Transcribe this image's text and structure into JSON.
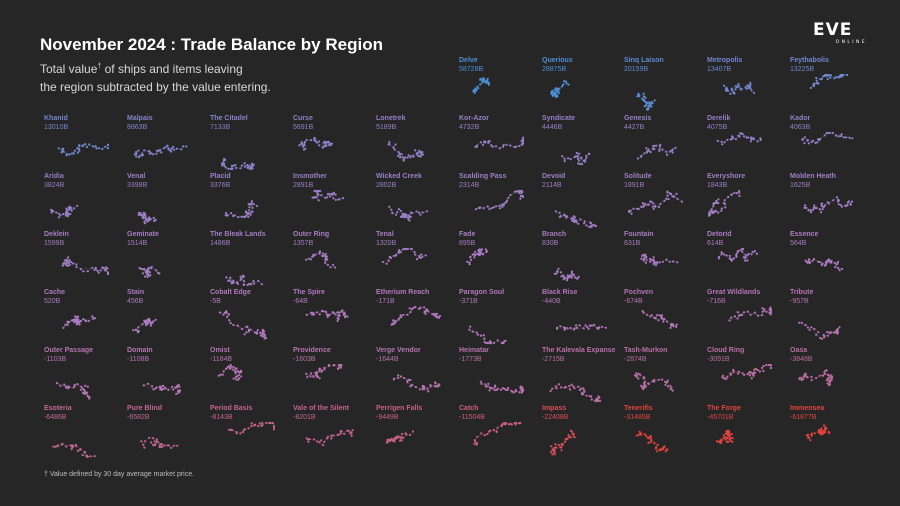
{
  "header": {
    "title": "November 2024 : Trade Balance by Region",
    "subtitle_part1": "Total value",
    "subtitle_sup": "†",
    "subtitle_part2": " of ships and items leaving",
    "subtitle_line2": "the region subtracted by the value entering.",
    "footnote": "† Value defined by 30 day average market price."
  },
  "logo": {
    "word": "EVE",
    "sub": "ONLINE"
  },
  "colors": {
    "background": "#262626",
    "positive": "#4d8fd6",
    "neutral": "#b07ac0",
    "negative": "#e0443e"
  },
  "chart_data": {
    "type": "small-multiples",
    "title": "November 2024 : Trade Balance by Region",
    "unit": "B ISK",
    "regions": [
      {
        "name": "Delve",
        "label": "58728B",
        "value": 58728
      },
      {
        "name": "Querious",
        "label": "28875B",
        "value": 28875
      },
      {
        "name": "Sinq Laison",
        "label": "20159B",
        "value": 20159
      },
      {
        "name": "Metropolis",
        "label": "13407B",
        "value": 13407
      },
      {
        "name": "Feythabolis",
        "label": "13225B",
        "value": 13225
      },
      {
        "name": "Khanid",
        "label": "13010B",
        "value": 13010
      },
      {
        "name": "Malpais",
        "label": "8863B",
        "value": 8863
      },
      {
        "name": "The Citadel",
        "label": "7133B",
        "value": 7133
      },
      {
        "name": "Curse",
        "label": "5691B",
        "value": 5691
      },
      {
        "name": "Lonetrek",
        "label": "5189B",
        "value": 5189
      },
      {
        "name": "Kor-Azor",
        "label": "4732B",
        "value": 4732
      },
      {
        "name": "Syndicate",
        "label": "4446B",
        "value": 4446
      },
      {
        "name": "Genesis",
        "label": "4427B",
        "value": 4427
      },
      {
        "name": "Derelik",
        "label": "4075B",
        "value": 4075
      },
      {
        "name": "Kador",
        "label": "4063B",
        "value": 4063
      },
      {
        "name": "Aridia",
        "label": "3824B",
        "value": 3824
      },
      {
        "name": "Venal",
        "label": "3398B",
        "value": 3398
      },
      {
        "name": "Placid",
        "label": "3376B",
        "value": 3376
      },
      {
        "name": "Insmother",
        "label": "2891B",
        "value": 2891
      },
      {
        "name": "Wicked Creek",
        "label": "2802B",
        "value": 2802
      },
      {
        "name": "Scalding Pass",
        "label": "2314B",
        "value": 2314
      },
      {
        "name": "Devoid",
        "label": "2114B",
        "value": 2114
      },
      {
        "name": "Solitude",
        "label": "1891B",
        "value": 1891
      },
      {
        "name": "Everyshore",
        "label": "1843B",
        "value": 1843
      },
      {
        "name": "Molden Heath",
        "label": "1625B",
        "value": 1625
      },
      {
        "name": "Deklein",
        "label": "1599B",
        "value": 1599
      },
      {
        "name": "Geminate",
        "label": "1514B",
        "value": 1514
      },
      {
        "name": "The Bleak Lands",
        "label": "1486B",
        "value": 1486
      },
      {
        "name": "Outer Ring",
        "label": "1357B",
        "value": 1357
      },
      {
        "name": "Tenal",
        "label": "1320B",
        "value": 1320
      },
      {
        "name": "Fade",
        "label": "895B",
        "value": 895
      },
      {
        "name": "Branch",
        "label": "830B",
        "value": 830
      },
      {
        "name": "Fountain",
        "label": "631B",
        "value": 631
      },
      {
        "name": "Detorid",
        "label": "614B",
        "value": 614
      },
      {
        "name": "Essence",
        "label": "564B",
        "value": 564
      },
      {
        "name": "Cache",
        "label": "520B",
        "value": 520
      },
      {
        "name": "Stain",
        "label": "456B",
        "value": 456
      },
      {
        "name": "Cobalt Edge",
        "label": "-5B",
        "value": -5
      },
      {
        "name": "The Spire",
        "label": "-64B",
        "value": -64
      },
      {
        "name": "Etherium Reach",
        "label": "-171B",
        "value": -171
      },
      {
        "name": "Paragon Soul",
        "label": "-371B",
        "value": -371
      },
      {
        "name": "Black Rise",
        "label": "-440B",
        "value": -440
      },
      {
        "name": "Pochven",
        "label": "-674B",
        "value": -674
      },
      {
        "name": "Great Wildlands",
        "label": "-716B",
        "value": -716
      },
      {
        "name": "Tribute",
        "label": "-957B",
        "value": -957
      },
      {
        "name": "Outer Passage",
        "label": "-1103B",
        "value": -1103
      },
      {
        "name": "Domain",
        "label": "-1108B",
        "value": -1108
      },
      {
        "name": "Omist",
        "label": "-1184B",
        "value": -1184
      },
      {
        "name": "Providence",
        "label": "-1603B",
        "value": -1603
      },
      {
        "name": "Verge Vendor",
        "label": "-1644B",
        "value": -1644
      },
      {
        "name": "Heimatar",
        "label": "-1773B",
        "value": -1773
      },
      {
        "name": "The Kalevala Expanse",
        "label": "-2715B",
        "value": -2715
      },
      {
        "name": "Tash-Murkon",
        "label": "-2874B",
        "value": -2874
      },
      {
        "name": "Cloud Ring",
        "label": "-3091B",
        "value": -3091
      },
      {
        "name": "Oasa",
        "label": "-3848B",
        "value": -3848
      },
      {
        "name": "Esoteria",
        "label": "-6486B",
        "value": -6486
      },
      {
        "name": "Pure Blind",
        "label": "-6582B",
        "value": -6582
      },
      {
        "name": "Period Basis",
        "label": "-8143B",
        "value": -8143
      },
      {
        "name": "Vale of the Silent",
        "label": "-8201B",
        "value": -8201
      },
      {
        "name": "Perrigen Falls",
        "label": "-9449B",
        "value": -9449
      },
      {
        "name": "Catch",
        "label": "-11504B",
        "value": -11504
      },
      {
        "name": "Impass",
        "label": "-22408B",
        "value": -22408
      },
      {
        "name": "Tenerifis",
        "label": "-31485B",
        "value": -31485
      },
      {
        "name": "The Forge",
        "label": "-45701B",
        "value": -45701
      },
      {
        "name": "Immensea",
        "label": "-61877B",
        "value": -61877
      }
    ]
  }
}
